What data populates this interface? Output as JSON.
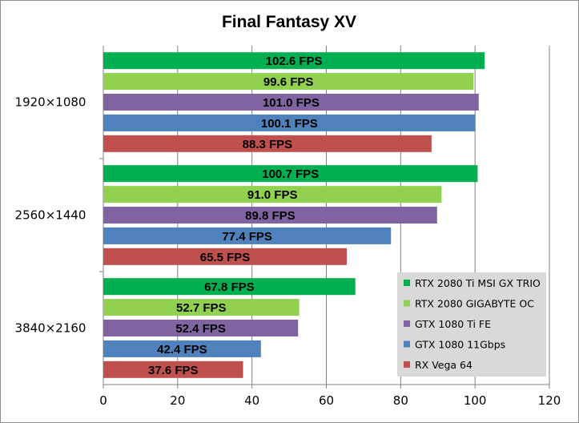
{
  "chart_data": {
    "type": "bar",
    "orientation": "horizontal",
    "title": "Final Fantasy XV",
    "xlabel": "",
    "ylabel": "",
    "categories": [
      "1920×1080",
      "2560×1440",
      "3840×2160"
    ],
    "series": [
      {
        "name": "RTX 2080 Ti MSI GX TRIO",
        "color": "#00b050",
        "values": [
          102.6,
          100.7,
          67.8
        ],
        "labels": [
          "102.6 FPS",
          "100.7 FPS",
          "67.8 FPS"
        ]
      },
      {
        "name": "RTX 2080 GIGABYTE OC",
        "color": "#92d050",
        "values": [
          99.6,
          91.0,
          52.7
        ],
        "labels": [
          "99.6 FPS",
          "91.0 FPS",
          "52.7 FPS"
        ]
      },
      {
        "name": "GTX 1080 Ti FE",
        "color": "#8064a2",
        "values": [
          101.0,
          89.8,
          52.4
        ],
        "labels": [
          "101.0 FPS",
          "89.8 FPS",
          "52.4 FPS"
        ]
      },
      {
        "name": "GTX 1080 11Gbps",
        "color": "#4f81bd",
        "values": [
          100.1,
          77.4,
          42.4
        ],
        "labels": [
          "100.1 FPS",
          "77.4 FPS",
          "42.4 FPS"
        ]
      },
      {
        "name": "RX Vega 64",
        "color": "#c0504d",
        "values": [
          88.3,
          65.5,
          37.6
        ],
        "labels": [
          "88.3 FPS",
          "65.5 FPS",
          "37.6 FPS"
        ]
      }
    ],
    "xlim": [
      0,
      120
    ],
    "xticks": [
      "0",
      "20",
      "40",
      "60",
      "80",
      "100",
      "120"
    ],
    "grid": true,
    "legend_position": "bottom-right",
    "legend_background": "#d9d9d9",
    "gridline_color": "#808080"
  }
}
